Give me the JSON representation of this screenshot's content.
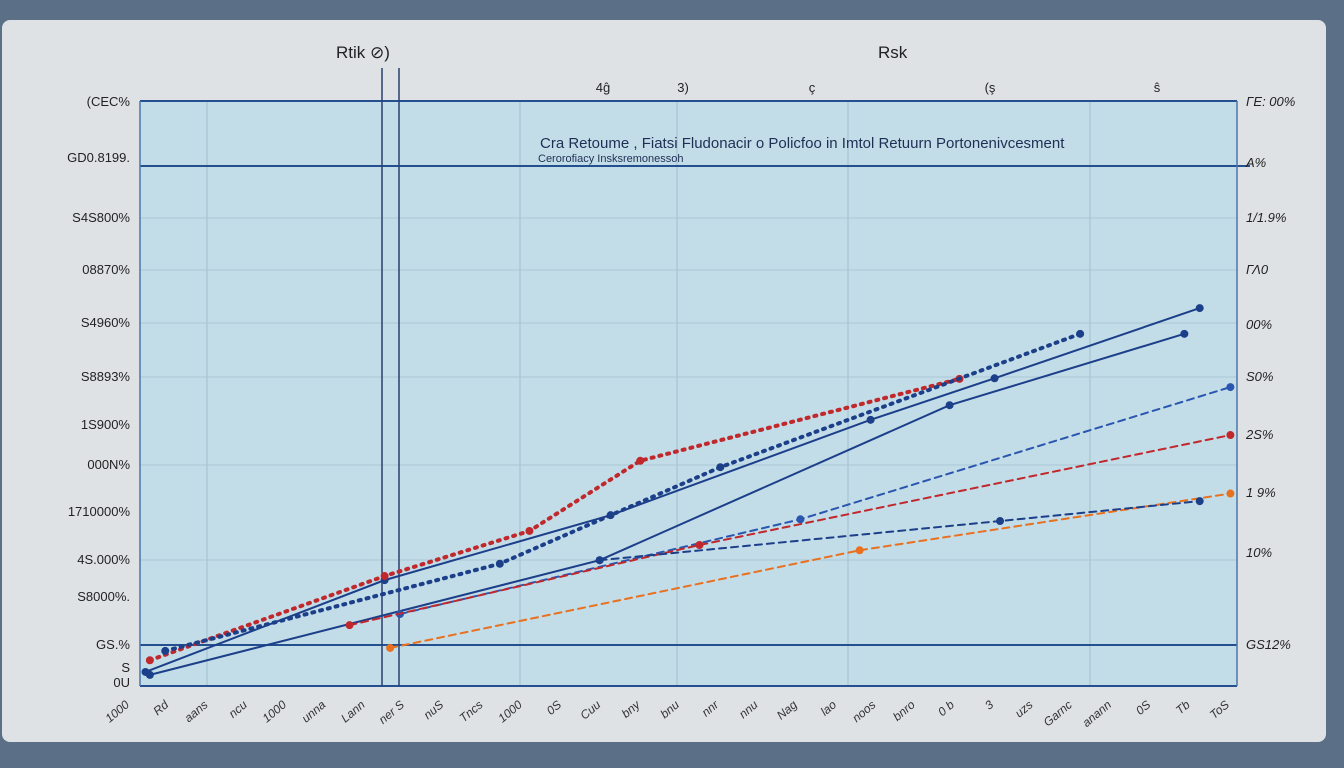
{
  "chart_data": {
    "type": "line",
    "title": "Cra Retoume , Fiatsi Fludonacir o Policfoo in Imtol Retuurn Portonenivcesment",
    "subtitle": "Cerorofiacy Insksremonessoh",
    "top_labels": [
      "Rtik ⊘)",
      "Rsk"
    ],
    "top_ticks": [
      "4ĝ",
      "3)",
      "ç",
      "(ş",
      "ŝ"
    ],
    "left_ticks": [
      "(CEC%",
      "GD0.8199.",
      "S4S800%",
      "08870%",
      "S4960%",
      "S8893%",
      "1S900%",
      "000N%",
      "1710000%",
      "4S.000%",
      "S8000%.",
      "GS.%",
      "S",
      "0U"
    ],
    "right_ticks": [
      "ΓE: 00%",
      "A%",
      "1/1.9%",
      "ΓΛ0",
      "00%",
      "S0%",
      "2S%",
      "1 9%",
      "10%",
      "GS12%"
    ],
    "x_ticks": [
      "1000",
      "Rd",
      "aans",
      "ncu",
      "1000",
      "unna",
      "Lann",
      "ner S",
      "nuS",
      "Tncs",
      "1000",
      "0S",
      "Cuu",
      "bny",
      "bnu",
      "nnr",
      "nnu",
      "Nag",
      "lao",
      "noos",
      "bnro",
      "0 b",
      "3",
      "uzs",
      "Garnc",
      "anann",
      "0S",
      "Tb",
      "ToS"
    ],
    "xlim": [
      0,
      100
    ],
    "ylim": [
      0,
      100
    ],
    "grid": true,
    "colors": {
      "navy": "#1c3f8a",
      "red": "#c0282c",
      "blue": "#2a56b0",
      "orange": "#e8701e",
      "plot_bg": "#c3dde8"
    },
    "series": [
      {
        "color": "#1c3f8a",
        "style": "solid",
        "points": [
          [
            0.5,
            2.4
          ],
          [
            22.3,
            18.1
          ],
          [
            42.9,
            29.2
          ],
          [
            66.6,
            45.5
          ],
          [
            77.9,
            52.6
          ],
          [
            96.6,
            64.6
          ]
        ]
      },
      {
        "color": "#c0282c",
        "style": "dotted",
        "points": [
          [
            0.9,
            4.4
          ],
          [
            22.3,
            18.8
          ],
          [
            35.5,
            26.5
          ],
          [
            45.6,
            38.5
          ],
          [
            74.7,
            52.5
          ]
        ]
      },
      {
        "color": "#1c3f8a",
        "style": "dotted",
        "points": [
          [
            2.3,
            6.0
          ],
          [
            32.8,
            20.9
          ],
          [
            52.9,
            37.4
          ],
          [
            85.7,
            60.2
          ]
        ]
      },
      {
        "color": "#1c3f8a",
        "style": "solid",
        "points": [
          [
            0.9,
            1.9
          ],
          [
            41.9,
            21.5
          ],
          [
            73.8,
            48.0
          ],
          [
            95.2,
            60.2
          ]
        ]
      },
      {
        "color": "#2a56b0",
        "style": "dashed",
        "points": [
          [
            23.7,
            12.3
          ],
          [
            60.2,
            28.5
          ],
          [
            99.4,
            51.1
          ]
        ]
      },
      {
        "color": "#c0282c",
        "style": "dashed",
        "points": [
          [
            19.1,
            10.4
          ],
          [
            51.0,
            24.1
          ],
          [
            99.4,
            42.9
          ]
        ]
      },
      {
        "color": "#e8701e",
        "style": "dashed",
        "points": [
          [
            22.8,
            6.5
          ],
          [
            65.6,
            23.2
          ],
          [
            99.4,
            32.9
          ]
        ]
      },
      {
        "color": "#1c3f8a",
        "style": "dashed",
        "points": [
          [
            41.9,
            21.5
          ],
          [
            78.4,
            28.2
          ],
          [
            96.6,
            31.6
          ]
        ]
      }
    ]
  }
}
